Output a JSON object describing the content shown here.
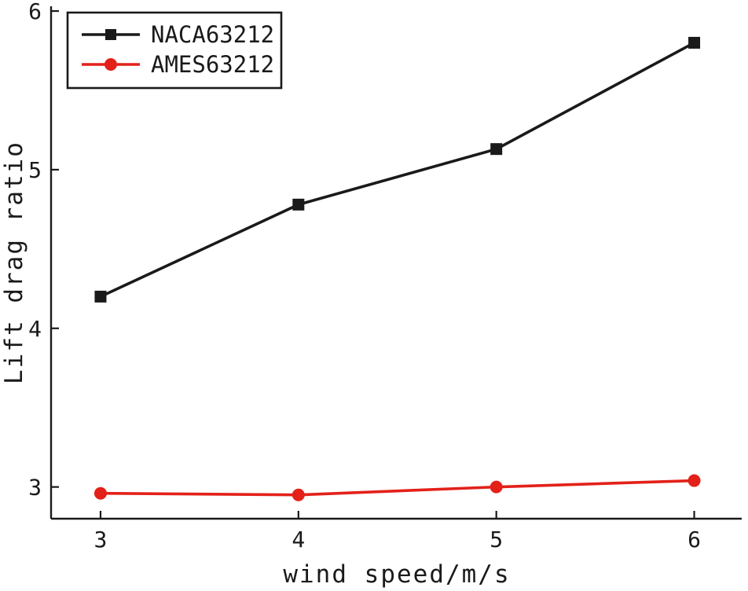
{
  "chart_data": {
    "type": "line",
    "title": "",
    "xlabel": "wind speed/m/s",
    "ylabel": "Lift drag ratio",
    "x": [
      3,
      4,
      5,
      6
    ],
    "xticks": [
      "3",
      "4",
      "5",
      "6"
    ],
    "yticks": [
      "3",
      "4",
      "5",
      "6"
    ],
    "xlim": [
      2.75,
      6.24
    ],
    "ylim": [
      2.8,
      6.03
    ],
    "grid": false,
    "legend_position": "top-left",
    "axis_color": "#1a1a1a",
    "series": [
      {
        "name": "NACA63212",
        "color": "#1a1a1a",
        "marker": "square",
        "values": [
          4.2,
          4.78,
          5.13,
          5.8
        ]
      },
      {
        "name": "AMES63212",
        "color": "#e32119",
        "marker": "circle",
        "values": [
          2.96,
          2.95,
          3.0,
          3.04
        ]
      }
    ]
  }
}
